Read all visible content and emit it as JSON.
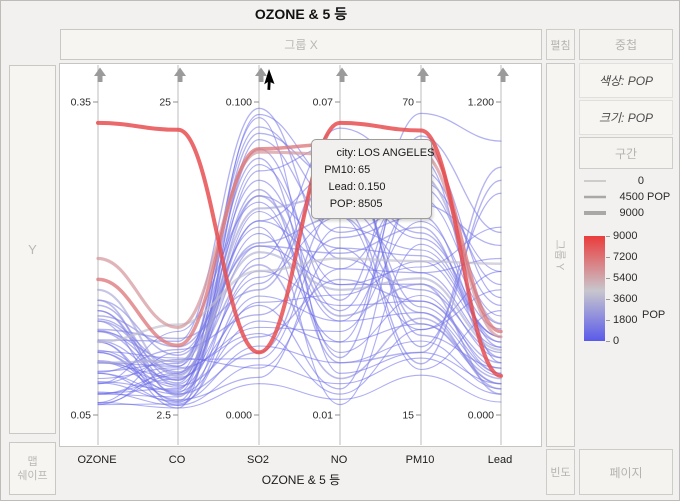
{
  "title": "OZONE & 5 등",
  "drop_zones": {
    "group_x": "그룹 X",
    "y": "Y",
    "group_y": "그룹 Y",
    "map_shape_lines": [
      "맵",
      "쉐이프"
    ],
    "freq": "빈도"
  },
  "buttons": {
    "unfold": "펼침",
    "overlay": "중첩",
    "color_by": "색상: POP",
    "size_by": "크기: POP",
    "interval": "구간",
    "page": "페이지"
  },
  "bottom_group_label": "OZONE & 5 등",
  "tooltip": {
    "rows": [
      {
        "label": "city:",
        "value": "LOS ANGELES"
      },
      {
        "label": "PM10:",
        "value": "65"
      },
      {
        "label": "Lead:",
        "value": "0.150"
      },
      {
        "label": "POP:",
        "value": "8505"
      }
    ]
  },
  "chart_data": {
    "type": "parallel-coordinates",
    "title": "OZONE & 5 등",
    "axes": [
      {
        "name": "OZONE",
        "min": 0.05,
        "max": 0.35,
        "top_label": "0.35",
        "bottom_label": "0.05"
      },
      {
        "name": "CO",
        "min": 2.5,
        "max": 25,
        "top_label": "25",
        "bottom_label": "2.5"
      },
      {
        "name": "SO2",
        "min": 0.0,
        "max": 0.1,
        "top_label": "0.100",
        "bottom_label": "0.000"
      },
      {
        "name": "NO",
        "min": 0.01,
        "max": 0.07,
        "top_label": "0.07",
        "bottom_label": "0.01"
      },
      {
        "name": "PM10",
        "min": 15,
        "max": 70,
        "top_label": "70",
        "bottom_label": "15"
      },
      {
        "name": "Lead",
        "min": 0.0,
        "max": 1.2,
        "top_label": "1.200",
        "bottom_label": "0.000"
      }
    ],
    "color_scale": {
      "label": "POP",
      "min": 0,
      "max": 9000,
      "ticks": [
        "9000",
        "7200",
        "5400",
        "3600",
        "1800",
        "0"
      ],
      "low_color": "#5a5aeb",
      "mid_color": "#c8c6cd",
      "high_color": "#eb3c3c"
    },
    "size_scale": {
      "entries": [
        {
          "value": "0",
          "unit": ""
        },
        {
          "value": "4500",
          "unit": "POP"
        },
        {
          "value": "9000",
          "unit": ""
        }
      ]
    },
    "highlighted_point": {
      "city": "LOS ANGELES",
      "PM10": 65,
      "Lead": 0.15,
      "POP": 8505
    },
    "series": [
      {
        "pop": 8505,
        "city": "LOS ANGELES",
        "values": [
          0.33,
          23,
          0.02,
          0.066,
          65,
          0.15
        ]
      },
      {
        "pop": 7071,
        "values": [
          0.18,
          7.5,
          0.085,
          0.062,
          63,
          0.32
        ]
      },
      {
        "pop": 6000,
        "values": [
          0.2,
          8.8,
          0.084,
          0.06,
          61,
          0.3
        ]
      },
      {
        "pop": 4200,
        "values": [
          0.12,
          9.0,
          0.046,
          0.04,
          42,
          0.58
        ]
      },
      {
        "pop": 3400,
        "values": [
          0.1,
          6.4,
          0.052,
          0.034,
          39,
          0.25
        ]
      },
      {
        "pop": 3000,
        "values": [
          0.17,
          5.3,
          0.066,
          0.052,
          57,
          0.35
        ]
      },
      {
        "pop": 170,
        "values": [
          0.062,
          3.0,
          0.01,
          0.013,
          22,
          0.05
        ]
      },
      {
        "pop": 220,
        "values": [
          0.072,
          3.2,
          0.016,
          0.016,
          25,
          0.08
        ]
      },
      {
        "pop": 300,
        "values": [
          0.081,
          3.5,
          0.022,
          0.02,
          28,
          0.1
        ]
      },
      {
        "pop": 380,
        "values": [
          0.09,
          4.0,
          0.03,
          0.024,
          31,
          0.12
        ]
      },
      {
        "pop": 450,
        "values": [
          0.101,
          4.2,
          0.038,
          0.028,
          33,
          0.15
        ]
      },
      {
        "pop": 520,
        "values": [
          0.112,
          4.5,
          0.046,
          0.031,
          35,
          0.18
        ]
      },
      {
        "pop": 600,
        "values": [
          0.121,
          5.0,
          0.054,
          0.035,
          38,
          0.22
        ]
      },
      {
        "pop": 680,
        "values": [
          0.131,
          5.5,
          0.062,
          0.038,
          40,
          0.26
        ]
      },
      {
        "pop": 760,
        "values": [
          0.142,
          6.0,
          0.07,
          0.042,
          43,
          0.3
        ]
      },
      {
        "pop": 400,
        "values": [
          0.07,
          5.5,
          0.095,
          0.018,
          26,
          0.12
        ]
      },
      {
        "pop": 900,
        "values": [
          0.12,
          3.0,
          0.088,
          0.045,
          52,
          0.65
        ]
      },
      {
        "pop": 250,
        "values": [
          0.062,
          7.0,
          0.06,
          0.012,
          45,
          0.3
        ]
      },
      {
        "pop": 1200,
        "values": [
          0.15,
          4.0,
          0.02,
          0.05,
          24,
          0.9
        ]
      },
      {
        "pop": 700,
        "values": [
          0.092,
          6.2,
          0.075,
          0.03,
          60,
          0.2
        ]
      },
      {
        "pop": 500,
        "values": [
          0.11,
          3.6,
          0.012,
          0.042,
          30,
          0.55
        ]
      },
      {
        "pop": 320,
        "values": [
          0.08,
          8.5,
          0.068,
          0.022,
          36,
          0.16
        ]
      },
      {
        "pop": 1100,
        "values": [
          0.13,
          4.8,
          0.09,
          0.055,
          47,
          0.28
        ]
      },
      {
        "pop": 620,
        "values": [
          0.1,
          5.2,
          0.035,
          0.015,
          55,
          0.42
        ]
      },
      {
        "pop": 1400,
        "values": [
          0.16,
          6.8,
          0.055,
          0.048,
          33,
          0.1
        ]
      },
      {
        "pop": 280,
        "values": [
          0.071,
          4.4,
          0.08,
          0.035,
          41,
          0.72
        ]
      },
      {
        "pop": 800,
        "values": [
          0.14,
          3.2,
          0.042,
          0.06,
          29,
          0.18
        ]
      },
      {
        "pop": 180,
        "values": [
          0.06,
          5.8,
          0.028,
          0.026,
          49,
          0.35
        ]
      },
      {
        "pop": 1000,
        "values": [
          0.122,
          7.8,
          0.098,
          0.04,
          37,
          0.24
        ]
      },
      {
        "pop": 560,
        "values": [
          0.09,
          3.4,
          0.05,
          0.065,
          58,
          0.5
        ]
      },
      {
        "pop": 1300,
        "values": [
          0.155,
          5.0,
          0.072,
          0.02,
          26,
          0.95
        ]
      },
      {
        "pop": 350,
        "values": [
          0.08,
          6.5,
          0.018,
          0.046,
          44,
          0.3
        ]
      },
      {
        "pop": 740,
        "values": [
          0.11,
          4.1,
          0.085,
          0.032,
          68,
          1.05
        ]
      },
      {
        "pop": 1600,
        "values": [
          0.132,
          8.0,
          0.04,
          0.058,
          31,
          0.14
        ]
      },
      {
        "pop": 230,
        "values": [
          0.07,
          3.8,
          0.065,
          0.028,
          53,
          0.38
        ]
      },
      {
        "pop": 880,
        "values": [
          0.1,
          6.0,
          0.092,
          0.05,
          40,
          0.6
        ]
      },
      {
        "pop": 1150,
        "values": [
          0.15,
          4.6,
          0.025,
          0.036,
          35,
          0.2
        ]
      },
      {
        "pop": 420,
        "values": [
          0.061,
          5.4,
          0.058,
          0.024,
          62,
          0.45
        ]
      },
      {
        "pop": 660,
        "values": [
          0.12,
          3.5,
          0.078,
          0.062,
          27,
          0.85
        ]
      },
      {
        "pop": 940,
        "values": [
          0.091,
          7.2,
          0.032,
          0.044,
          50,
          0.26
        ]
      },
      {
        "pop": 1750,
        "values": [
          0.14,
          5.6,
          0.048,
          0.017,
          32,
          0.12
        ]
      },
      {
        "pop": 510,
        "values": [
          0.082,
          4.3,
          0.096,
          0.054,
          46,
          0.33
        ]
      },
      {
        "pop": 310,
        "values": [
          0.111,
          6.6,
          0.015,
          0.038,
          56,
          0.55
        ]
      },
      {
        "pop": 1900,
        "values": [
          0.16,
          3.9,
          0.07,
          0.029,
          38,
          0.08
        ]
      },
      {
        "pop": 150,
        "values": [
          0.07,
          5.1,
          0.044,
          0.048,
          23,
          0.4
        ]
      },
      {
        "pop": 1020,
        "values": [
          0.13,
          6.3,
          0.082,
          0.021,
          64,
          0.7
        ]
      },
      {
        "pop": 780,
        "values": [
          0.102,
          4.7,
          0.062,
          0.057,
          34,
          0.16
        ]
      },
      {
        "pop": 200,
        "values": [
          0.06,
          3.3,
          0.036,
          0.033,
          42,
          0.28
        ]
      },
      {
        "pop": 1450,
        "values": [
          0.145,
          7.4,
          0.054,
          0.041,
          48,
          0.22
        ]
      },
      {
        "pop": 340,
        "values": [
          0.085,
          5.9,
          0.026,
          0.014,
          30,
          0.48
        ]
      }
    ]
  }
}
